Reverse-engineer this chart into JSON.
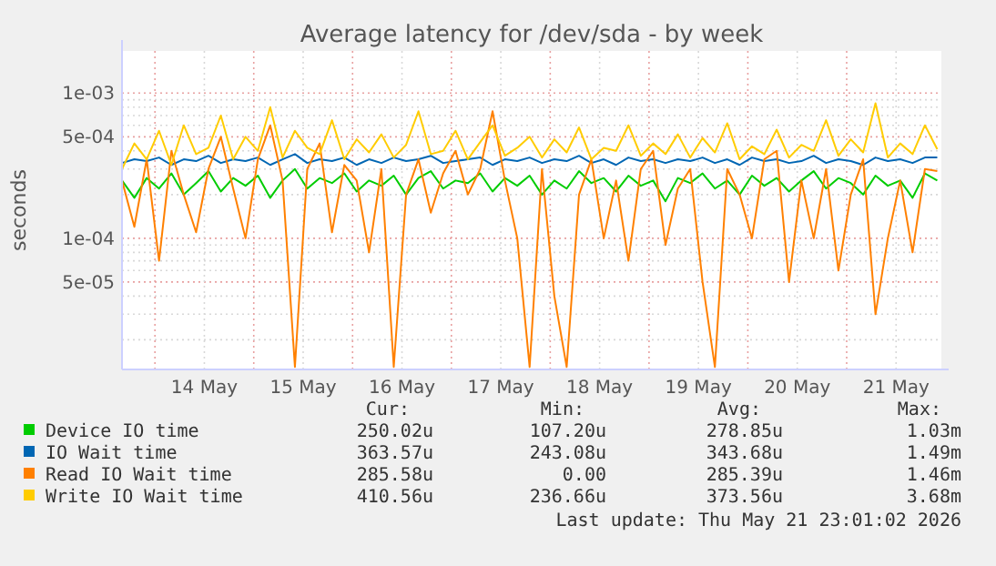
{
  "chart_data": {
    "type": "line",
    "title": "Average latency for /dev/sda - by week",
    "ylabel": "seconds",
    "log": "y",
    "grid": true,
    "legend": "bottom",
    "line_style": "solid",
    "xlim": [
      "2026-05-13T16:00",
      "2026-05-21T23:00"
    ],
    "xticks": [
      {
        "value": "2026-05-14T00:00",
        "label": null
      },
      {
        "value": "2026-05-14T12:00",
        "label": "14 May"
      },
      {
        "value": "2026-05-15T00:00",
        "label": null
      },
      {
        "value": "2026-05-15T12:00",
        "label": "15 May"
      },
      {
        "value": "2026-05-16T00:00",
        "label": null
      },
      {
        "value": "2026-05-16T12:00",
        "label": "16 May"
      },
      {
        "value": "2026-05-17T00:00",
        "label": null
      },
      {
        "value": "2026-05-17T12:00",
        "label": "17 May"
      },
      {
        "value": "2026-05-18T00:00",
        "label": null
      },
      {
        "value": "2026-05-18T12:00",
        "label": "18 May"
      },
      {
        "value": "2026-05-19T00:00",
        "label": null
      },
      {
        "value": "2026-05-19T12:00",
        "label": "19 May"
      },
      {
        "value": "2026-05-20T00:00",
        "label": null
      },
      {
        "value": "2026-05-20T12:00",
        "label": "20 May"
      },
      {
        "value": "2026-05-21T00:00",
        "label": null
      },
      {
        "value": "2026-05-21T12:00",
        "label": "21 May"
      }
    ],
    "ylim": [
      1.25e-05,
      0.00195
    ],
    "yticks": [
      {
        "value": 2e-05,
        "label": null
      },
      {
        "value": 3e-05,
        "label": null
      },
      {
        "value": 4e-05,
        "label": null
      },
      {
        "value": 5e-05,
        "label": "5e-05"
      },
      {
        "value": 6e-05,
        "label": null
      },
      {
        "value": 7e-05,
        "label": null
      },
      {
        "value": 8e-05,
        "label": null
      },
      {
        "value": 9e-05,
        "label": null
      },
      {
        "value": 0.0001,
        "label": "1e-04"
      },
      {
        "value": 0.0002,
        "label": null
      },
      {
        "value": 0.0003,
        "label": null
      },
      {
        "value": 0.0004,
        "label": null
      },
      {
        "value": 0.0005,
        "label": "5e-04"
      },
      {
        "value": 0.0006,
        "label": null
      },
      {
        "value": 0.0007,
        "label": null
      },
      {
        "value": 0.0008,
        "label": null
      },
      {
        "value": 0.0009,
        "label": null
      },
      {
        "value": 0.001,
        "label": "1e-03"
      }
    ],
    "x": [
      "2026-05-13T16:00",
      "2026-05-13T19:00",
      "2026-05-13T22:00",
      "2026-05-14T01:00",
      "2026-05-14T04:00",
      "2026-05-14T07:00",
      "2026-05-14T10:00",
      "2026-05-14T13:00",
      "2026-05-14T16:00",
      "2026-05-14T19:00",
      "2026-05-14T22:00",
      "2026-05-15T01:00",
      "2026-05-15T04:00",
      "2026-05-15T07:00",
      "2026-05-15T10:00",
      "2026-05-15T13:00",
      "2026-05-15T16:00",
      "2026-05-15T19:00",
      "2026-05-15T22:00",
      "2026-05-16T01:00",
      "2026-05-16T04:00",
      "2026-05-16T07:00",
      "2026-05-16T10:00",
      "2026-05-16T13:00",
      "2026-05-16T16:00",
      "2026-05-16T19:00",
      "2026-05-16T22:00",
      "2026-05-17T01:00",
      "2026-05-17T04:00",
      "2026-05-17T07:00",
      "2026-05-17T10:00",
      "2026-05-17T13:00",
      "2026-05-17T16:00",
      "2026-05-17T19:00",
      "2026-05-17T22:00",
      "2026-05-18T01:00",
      "2026-05-18T04:00",
      "2026-05-18T07:00",
      "2026-05-18T10:00",
      "2026-05-18T13:00",
      "2026-05-18T16:00",
      "2026-05-18T19:00",
      "2026-05-18T22:00",
      "2026-05-19T01:00",
      "2026-05-19T04:00",
      "2026-05-19T07:00",
      "2026-05-19T10:00",
      "2026-05-19T13:00",
      "2026-05-19T16:00",
      "2026-05-19T19:00",
      "2026-05-19T22:00",
      "2026-05-20T01:00",
      "2026-05-20T04:00",
      "2026-05-20T07:00",
      "2026-05-20T10:00",
      "2026-05-20T13:00",
      "2026-05-20T16:00",
      "2026-05-20T19:00",
      "2026-05-20T22:00",
      "2026-05-21T01:00",
      "2026-05-21T04:00",
      "2026-05-21T07:00",
      "2026-05-21T10:00",
      "2026-05-21T13:00",
      "2026-05-21T16:00",
      "2026-05-21T19:00",
      "2026-05-21T22:00"
    ],
    "series": [
      {
        "name": "Device IO time",
        "color": "#00cc00",
        "values": [
          0.00025,
          0.00019,
          0.00026,
          0.00022,
          0.00028,
          0.0002,
          0.00024,
          0.00029,
          0.00021,
          0.00026,
          0.00023,
          0.00027,
          0.00019,
          0.00025,
          0.0003,
          0.00022,
          0.00026,
          0.00024,
          0.00028,
          0.00021,
          0.00025,
          0.00023,
          0.00027,
          0.0002,
          0.00026,
          0.00029,
          0.00022,
          0.00025,
          0.00024,
          0.00028,
          0.00021,
          0.00026,
          0.00023,
          0.00027,
          0.0002,
          0.00025,
          0.00022,
          0.00029,
          0.00024,
          0.00026,
          0.00021,
          0.00027,
          0.00023,
          0.00025,
          0.00018,
          0.00026,
          0.00024,
          0.00028,
          0.00022,
          0.00025,
          0.0002,
          0.00027,
          0.00023,
          0.00026,
          0.00021,
          0.00025,
          0.00029,
          0.00022,
          0.00026,
          0.00024,
          0.0002,
          0.00027,
          0.00023,
          0.00025,
          0.00019,
          0.00028,
          0.00025
        ]
      },
      {
        "name": "IO Wait time",
        "color": "#0066b3",
        "values": [
          0.00033,
          0.00035,
          0.00034,
          0.00036,
          0.00032,
          0.00035,
          0.00034,
          0.00037,
          0.00033,
          0.00035,
          0.00034,
          0.00036,
          0.00032,
          0.00035,
          0.00038,
          0.00033,
          0.00035,
          0.00034,
          0.00036,
          0.00032,
          0.00035,
          0.00033,
          0.00036,
          0.00034,
          0.00035,
          0.00037,
          0.00033,
          0.00034,
          0.00035,
          0.00036,
          0.00032,
          0.00035,
          0.00034,
          0.00036,
          0.00033,
          0.00035,
          0.00034,
          0.00037,
          0.00033,
          0.00035,
          0.00032,
          0.00036,
          0.00034,
          0.00035,
          0.00033,
          0.00035,
          0.00034,
          0.00036,
          0.00033,
          0.00035,
          0.00032,
          0.00036,
          0.00034,
          0.00035,
          0.00033,
          0.00034,
          0.00037,
          0.00033,
          0.00035,
          0.00034,
          0.00032,
          0.00036,
          0.00034,
          0.00035,
          0.00033,
          0.00036,
          0.00036
        ]
      },
      {
        "name": "Read IO Wait time",
        "color": "#ff8000",
        "values": [
          0.00025,
          0.00012,
          0.00035,
          7e-05,
          0.0004,
          0.0002,
          0.00011,
          0.0003,
          0.0005,
          0.00022,
          0.0001,
          0.00035,
          0.0006,
          0.00025,
          1.3e-05,
          0.0003,
          0.00045,
          0.00011,
          0.00032,
          0.00025,
          8e-05,
          0.0003,
          1.3e-05,
          0.0002,
          0.00035,
          0.00015,
          0.00028,
          0.0004,
          0.0002,
          0.0003,
          0.00075,
          0.00025,
          0.0001,
          1.3e-05,
          0.0003,
          4e-05,
          1.3e-05,
          0.0002,
          0.00035,
          0.0001,
          0.00025,
          7e-05,
          0.0003,
          0.0004,
          9e-05,
          0.00022,
          0.0003,
          5e-05,
          1.3e-05,
          0.0003,
          0.0002,
          0.0001,
          0.00035,
          0.0004,
          5e-05,
          0.00025,
          0.0001,
          0.0003,
          6e-05,
          0.0002,
          0.00035,
          3e-05,
          0.0001,
          0.00025,
          8e-05,
          0.0003,
          0.00029
        ]
      },
      {
        "name": "Write IO Wait time",
        "color": "#ffcc00",
        "values": [
          0.0003,
          0.00045,
          0.00035,
          0.00055,
          0.00032,
          0.0006,
          0.00038,
          0.00042,
          0.0007,
          0.00035,
          0.0005,
          0.0004,
          0.0008,
          0.00036,
          0.00055,
          0.00042,
          0.00038,
          0.00065,
          0.00035,
          0.00048,
          0.00039,
          0.00052,
          0.00036,
          0.00044,
          0.00075,
          0.00038,
          0.0004,
          0.00055,
          0.00035,
          0.00046,
          0.0006,
          0.00037,
          0.00042,
          0.0005,
          0.00036,
          0.00048,
          0.00039,
          0.00058,
          0.00035,
          0.00042,
          0.0004,
          0.0006,
          0.00037,
          0.00045,
          0.00038,
          0.00052,
          0.00036,
          0.00049,
          0.00039,
          0.00062,
          0.00035,
          0.00043,
          0.00038,
          0.00056,
          0.00036,
          0.00044,
          0.0004,
          0.00065,
          0.00037,
          0.00048,
          0.00039,
          0.00085,
          0.00036,
          0.00045,
          0.00038,
          0.0006,
          0.00041
        ]
      }
    ],
    "annotations": [
      "Cur:",
      "Min:",
      "Avg:",
      "Max:",
      "250.02u",
      "107.20u",
      "278.85u",
      "1.03m",
      "363.57u",
      "243.08u",
      "343.68u",
      "1.49m",
      "285.58u",
      "0.00",
      "285.39u",
      "1.46m",
      "410.56u",
      "236.66u",
      "373.56u",
      "3.68m",
      "Last update: Thu May 21 23:01:02 2026"
    ]
  }
}
